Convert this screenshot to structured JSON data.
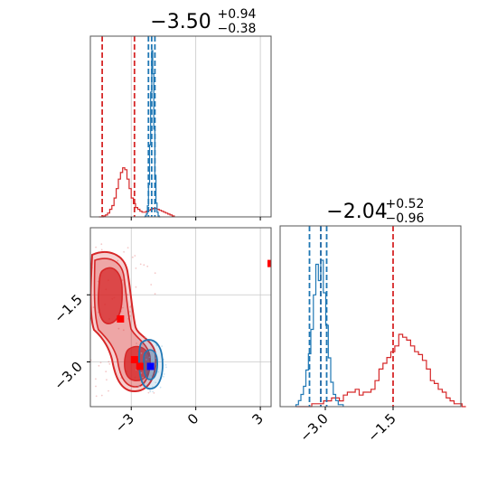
{
  "colors": {
    "prior": "#d62728",
    "posterior": "#1f77b4",
    "marker_red": "#ff0000",
    "marker_blue": "#0000ff",
    "grid": "#c8c8c8",
    "frame": "#555555"
  },
  "chart_data": {
    "type": "corner",
    "param_limits": [
      [
        -4.9,
        3.5
      ],
      [
        -4.0,
        0.0
      ]
    ],
    "titles": {
      "param1": {
        "median": "−3.50",
        "plus": "+0.94",
        "minus": "−0.38"
      },
      "param2": {
        "median": "−2.04",
        "plus": "+0.52",
        "minus": "−0.96"
      }
    },
    "ticks": {
      "param1_bottom": [
        {
          "value": -3,
          "label": "−3"
        },
        {
          "value": 0,
          "label": "0"
        },
        {
          "value": 3,
          "label": "3"
        }
      ],
      "param2_left": [
        {
          "value": -1.5,
          "label": "−1.5"
        },
        {
          "value": -3.0,
          "label": "−3.0"
        }
      ],
      "param2_bottom": [
        {
          "value": -3.0,
          "label": "−3.0"
        },
        {
          "value": -1.5,
          "label": "−1.5"
        }
      ]
    },
    "gridlines": {
      "param1": [
        -3,
        0,
        3
      ],
      "param2": [
        -1.5,
        -3.0
      ]
    },
    "hist_param1": {
      "bin_start": -4.5,
      "bin_width": 0.1,
      "prior_counts": [
        0,
        0,
        1,
        2,
        4,
        8,
        12,
        20,
        30,
        40,
        47,
        52,
        50,
        40,
        30,
        20,
        14,
        10,
        8,
        6,
        5,
        5,
        6,
        7,
        8,
        9,
        9,
        8,
        7,
        6,
        5,
        4,
        3,
        2,
        1
      ],
      "posterior_counts": [
        0,
        1,
        3,
        12,
        35,
        78,
        135,
        180,
        155,
        95,
        45,
        15,
        5,
        1,
        0
      ],
      "posterior_bin_start": -2.4,
      "posterior_bin_width": 0.05,
      "prior_quantiles": [
        -4.35,
        -2.85
      ],
      "posterior_quantiles": [
        -2.2,
        -2.05,
        -1.9
      ]
    },
    "hist_param2": {
      "bin_start": -3.65,
      "bin_width": 0.0875,
      "prior_counts": [
        0,
        0,
        0,
        0,
        1,
        1,
        1,
        2,
        2,
        3,
        3,
        2,
        4,
        5,
        5,
        6,
        4,
        5,
        5,
        6,
        9,
        13,
        15,
        17,
        19,
        21,
        25,
        24,
        23,
        21,
        19,
        18,
        16,
        13,
        9,
        8,
        6,
        5,
        3,
        2,
        1,
        1,
        0
      ],
      "posterior_counts": [
        1,
        3,
        6,
        10,
        18,
        26,
        38,
        55,
        70,
        62,
        72,
        56,
        40,
        24,
        12,
        6,
        3,
        1,
        1
      ],
      "posterior_bin_start": -3.65,
      "posterior_bin_width": 0.055,
      "prior_quantiles": [
        -3.1,
        -1.5
      ],
      "posterior_quantiles": [
        -3.35,
        -3.1,
        -2.97
      ]
    },
    "markers_red": [
      [
        -3.5,
        -2.04
      ],
      [
        -2.85,
        -2.95
      ],
      [
        3.5,
        -0.8
      ],
      [
        -2.6,
        -3.1
      ]
    ],
    "markers_blue": [
      [
        -2.1,
        -3.1
      ]
    ]
  }
}
